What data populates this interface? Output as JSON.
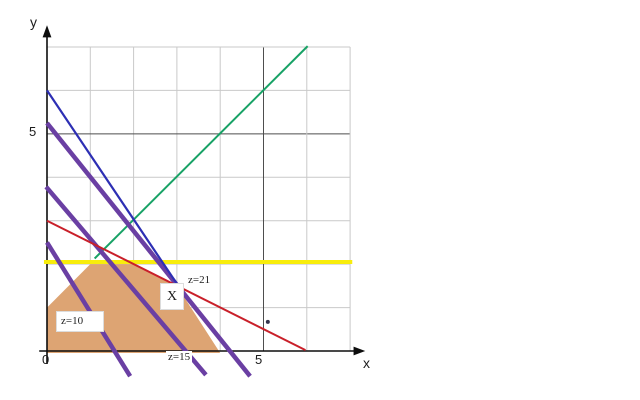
{
  "axis": {
    "x_label": "x",
    "y_label": "y",
    "origin_label": "0",
    "x_tick_label": "5",
    "y_tick_label": "5"
  },
  "annotations": {
    "z10": "z=10",
    "z15": "z=15",
    "z21": "z=21",
    "optimum_marker": "X"
  },
  "colors": {
    "background": "#ffffff",
    "grid_light": "#c9c9c9",
    "grid_dark": "#4e4e4e",
    "axis": "#0d0d0d",
    "region_fill": "#dda473",
    "yellow_line": "#f8ed0c",
    "green_line": "#18a266",
    "purple_line": "#6a3fa3",
    "red_line": "#c9202a",
    "blue_line": "#2d2fb4",
    "point": "#33334d",
    "label_text": "#1c1c1c"
  },
  "chart_data": {
    "type": "line",
    "title": "",
    "xlabel": "x",
    "ylabel": "y",
    "xlim": [
      0,
      7.3
    ],
    "ylim": [
      0,
      7.4
    ],
    "grid": true,
    "grid_step": 1,
    "dark_grid_at": 5,
    "labeled_ticks": {
      "x": [
        0,
        5
      ],
      "y": [
        5
      ]
    },
    "feasible_region": {
      "vertices": [
        [
          0,
          0
        ],
        [
          0,
          1
        ],
        [
          1,
          2
        ],
        [
          2,
          2
        ],
        [
          3,
          1.5
        ],
        [
          4,
          0
        ]
      ],
      "fill": "#dda473"
    },
    "lines": [
      {
        "id": "yellow-constraint",
        "equation": "y = 2",
        "color": "#f8ed0c",
        "width": 4,
        "points": [
          [
            -0.07,
            2.05
          ],
          [
            7.05,
            2.05
          ]
        ]
      },
      {
        "id": "green-constraint",
        "equation": "y = x + 1",
        "color": "#18a266",
        "width": 2,
        "points": [
          [
            1.1,
            2.13
          ],
          [
            6.02,
            7.02
          ]
        ]
      },
      {
        "id": "iso-profit-z21",
        "equation": "5x + 4y = 21",
        "label": "z=21",
        "color": "#6a3fa3",
        "width": 4.5,
        "points": [
          [
            0,
            5.25
          ],
          [
            4.69,
            -0.58
          ]
        ]
      },
      {
        "id": "iso-profit-z15",
        "equation": "5x + 4y = 15",
        "label": "z=15",
        "color": "#6a3fa3",
        "width": 4.5,
        "points": [
          [
            -0.02,
            3.78
          ],
          [
            3.67,
            -0.55
          ]
        ]
      },
      {
        "id": "iso-profit-z10",
        "equation": "5x + 4y = 10",
        "label": "z=10",
        "color": "#6a3fa3",
        "width": 4.5,
        "points": [
          [
            0,
            2.5
          ],
          [
            1.92,
            -0.58
          ]
        ]
      },
      {
        "id": "red-constraint",
        "equation": "x + 2y = 6",
        "color": "#c9202a",
        "width": 2,
        "points": [
          [
            0,
            3
          ],
          [
            5.97,
            0.02
          ]
        ]
      },
      {
        "id": "blue-constraint",
        "equation": "3x + 2y = 12",
        "color": "#2d2fb4",
        "width": 2.2,
        "points": [
          [
            0,
            6
          ],
          [
            3.1,
            1.4
          ]
        ]
      }
    ],
    "objective": "z = 5x + 4y",
    "optimum": {
      "x": 3,
      "y": 1.5,
      "z": 21,
      "marker": "X"
    },
    "extra_point": {
      "x": 5.1,
      "y": 0.67
    }
  }
}
